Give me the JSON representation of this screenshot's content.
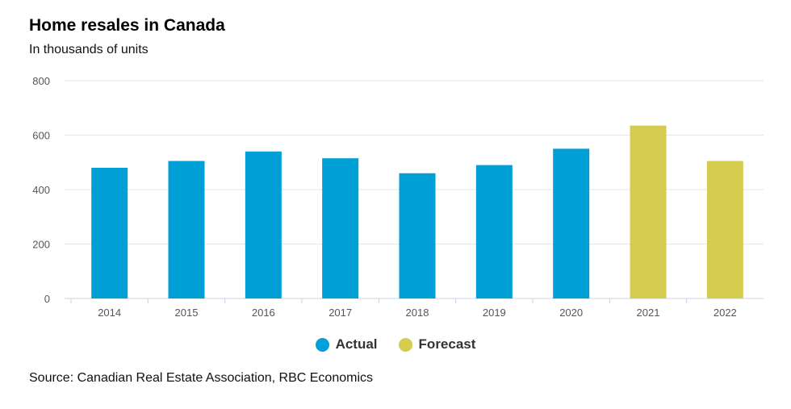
{
  "chart_data": {
    "type": "bar",
    "title": "Home resales in Canada",
    "subtitle": "In thousands of units",
    "categories": [
      "2014",
      "2015",
      "2016",
      "2017",
      "2018",
      "2019",
      "2020",
      "2021",
      "2022"
    ],
    "series": [
      {
        "name": "Actual",
        "color": "#009fd6",
        "values": [
          480,
          505,
          540,
          515,
          460,
          490,
          550,
          null,
          null
        ]
      },
      {
        "name": "Forecast",
        "color": "#d5cb4f",
        "values": [
          null,
          null,
          null,
          null,
          null,
          null,
          null,
          635,
          505
        ]
      }
    ],
    "ylim": [
      0,
      800
    ],
    "yticks": [
      "0",
      "200",
      "400",
      "600",
      "800"
    ],
    "grid": true,
    "legend": "bottom-center",
    "source": "Source: Canadian Real Estate Association, RBC Economics"
  }
}
